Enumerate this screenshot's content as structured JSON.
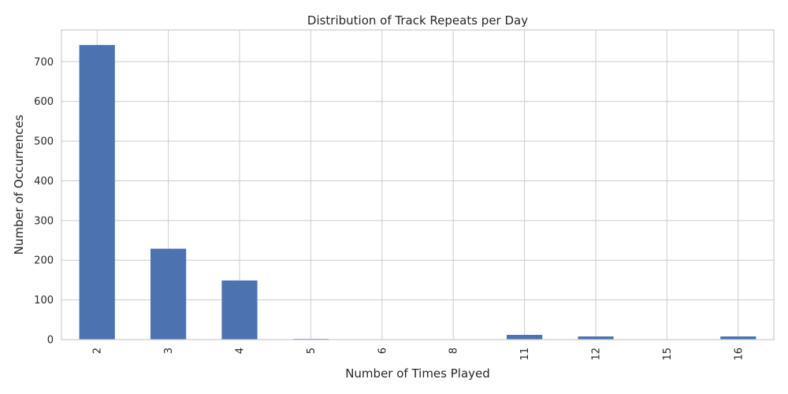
{
  "chart_data": {
    "type": "bar",
    "title": "Distribution of Track Repeats per Day",
    "xlabel": "Number of Times Played",
    "ylabel": "Number of Occurrences",
    "categories": [
      "2",
      "3",
      "4",
      "5",
      "6",
      "8",
      "11",
      "12",
      "15",
      "16"
    ],
    "values": [
      742,
      229,
      149,
      2,
      1,
      1,
      12,
      8,
      1,
      8
    ],
    "yticks": [
      0,
      100,
      200,
      300,
      400,
      500,
      600,
      700
    ],
    "ylim": [
      0,
      780
    ],
    "grid": true,
    "bar_color": "#4c72b0"
  }
}
